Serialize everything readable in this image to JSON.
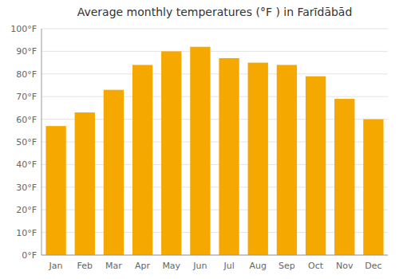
{
  "chart_data": {
    "type": "bar",
    "title": "Average monthly temperatures (°F ) in Farīdābād",
    "categories": [
      "Jan",
      "Feb",
      "Mar",
      "Apr",
      "May",
      "Jun",
      "Jul",
      "Aug",
      "Sep",
      "Oct",
      "Nov",
      "Dec"
    ],
    "values": [
      57,
      63,
      73,
      84,
      90,
      92,
      87,
      85,
      84,
      79,
      69,
      60
    ],
    "color": "#F5A800",
    "ylim": [
      0,
      100
    ],
    "yticks": [
      {
        "value": 0,
        "label": "0°F"
      },
      {
        "value": 10,
        "label": "10°F"
      },
      {
        "value": 20,
        "label": "20°F"
      },
      {
        "value": 30,
        "label": "30°F"
      },
      {
        "value": 40,
        "label": "40°F"
      },
      {
        "value": 50,
        "label": "50°F"
      },
      {
        "value": 60,
        "label": "60°F"
      },
      {
        "value": 70,
        "label": "70°F"
      },
      {
        "value": 80,
        "label": "80°F"
      },
      {
        "value": 90,
        "label": "90°F"
      },
      {
        "value": 100,
        "label": "100°F"
      }
    ],
    "grid": true
  }
}
